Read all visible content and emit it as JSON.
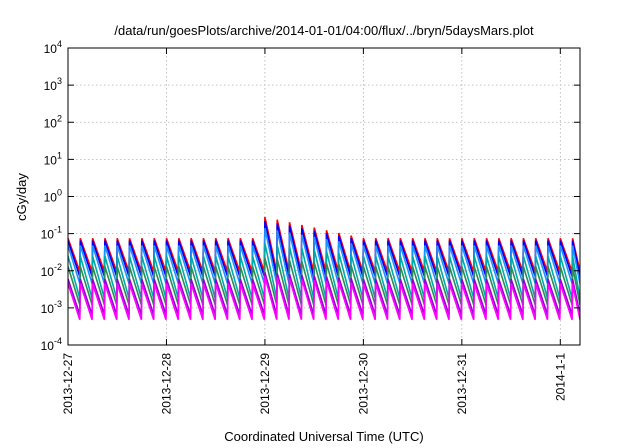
{
  "chart_data": {
    "type": "line",
    "title": "/data/run/goesPlots/archive/2014-01-01/04:00/flux/../bryn/5daysMars.plot",
    "xlabel": "Coordinated Universal Time (UTC)",
    "ylabel": "cGy/day",
    "yscale": "log",
    "ylim": [
      0.0001,
      10000
    ],
    "xlim_days": [
      0,
      5.2
    ],
    "grid": true,
    "y_ticks": [
      {
        "base": "10",
        "exp": "-4"
      },
      {
        "base": "10",
        "exp": "-3"
      },
      {
        "base": "10",
        "exp": "-2"
      },
      {
        "base": "10",
        "exp": "-1"
      },
      {
        "base": "10",
        "exp": "0"
      },
      {
        "base": "10",
        "exp": "1"
      },
      {
        "base": "10",
        "exp": "2"
      },
      {
        "base": "10",
        "exp": "3"
      },
      {
        "base": "10",
        "exp": "4"
      }
    ],
    "x_ticks": [
      "2013-12-27",
      "2013-12-28",
      "2013-12-29",
      "2013-12-30",
      "2013-12-31",
      "2014-1-1"
    ],
    "period_hours": 3,
    "event_start_day": 2.0,
    "series": [
      {
        "color": "#ff0000",
        "peak_base": 0.075,
        "peak_event": 0.28,
        "trough": 0.0095
      },
      {
        "color": "#0000ff",
        "peak_base": 0.065,
        "peak_event": 0.22,
        "trough": 0.007
      },
      {
        "color": "#1e90ff",
        "peak_base": 0.048,
        "peak_event": 0.14,
        "trough": 0.0045
      },
      {
        "color": "#00aaaa",
        "peak_base": 0.025,
        "peak_event": 0.055,
        "trough": 0.0018
      },
      {
        "color": "#2e8b57",
        "peak_base": 0.013,
        "peak_event": 0.022,
        "trough": 0.0012
      },
      {
        "color": "#9400d3",
        "peak_base": 0.006,
        "peak_event": 0.009,
        "trough": 0.00065
      },
      {
        "color": "#ff00ff",
        "peak_base": 0.0045,
        "peak_event": 0.007,
        "trough": 0.00048
      }
    ]
  }
}
